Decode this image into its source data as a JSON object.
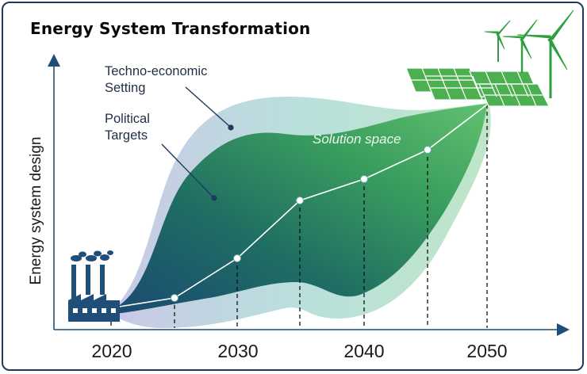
{
  "title": "Energy System Transformation",
  "y_axis_label": "Energy system design",
  "x_ticks": [
    "2020",
    "2030",
    "2040",
    "2050"
  ],
  "annotations": {
    "techno_economic": [
      "Techno-economic",
      "Setting"
    ],
    "political": [
      "Political",
      "Targets"
    ],
    "solution_space": "Solution space"
  },
  "colors": {
    "frame": "#1f3a5f",
    "axis": "#1f4e79",
    "outer_band": "#b7dfe0",
    "inner_band_dark": "#1f5f6f",
    "inner_band_light": "#5cb86a",
    "path_line": "#ffffff",
    "turbine": "#2e9e3e",
    "panel": "#4caf50",
    "factory": "#1f4e79"
  },
  "icons": [
    "factory-icon",
    "solar-panel-icon",
    "wind-turbine-icon"
  ]
}
